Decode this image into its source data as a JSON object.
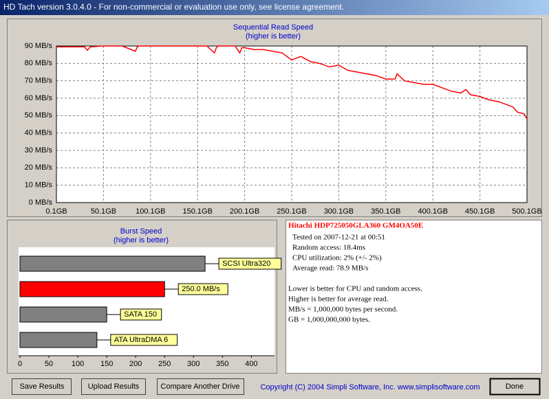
{
  "window": {
    "title": "HD Tach version 3.0.4.0  - For non-commercial or evaluation use only, see license agreement."
  },
  "chart_data": [
    {
      "type": "line",
      "title": "Sequential Read Speed",
      "subtitle": "(higher is better)",
      "color": "#ff0000",
      "grid": true,
      "x": [
        0.1,
        10,
        20,
        30,
        33,
        36,
        50,
        70,
        84,
        86,
        88,
        100,
        120,
        140,
        160,
        168,
        170,
        172,
        180,
        190,
        195,
        197,
        200,
        210,
        220,
        230,
        240,
        250,
        260,
        270,
        280,
        290,
        300,
        310,
        320,
        330,
        340,
        350,
        360,
        362,
        370,
        380,
        390,
        400,
        410,
        420,
        430,
        435,
        440,
        450,
        460,
        470,
        480,
        485,
        490,
        497,
        500.1
      ],
      "values": [
        89.5,
        89.5,
        89.5,
        89.5,
        87.5,
        89.5,
        90,
        90,
        87,
        89.5,
        90,
        90,
        90,
        90,
        90,
        86,
        89,
        90,
        90,
        90,
        86,
        89,
        89,
        88,
        88,
        87,
        86,
        82,
        84,
        81,
        80,
        78,
        79,
        76,
        75,
        74,
        73,
        71,
        71,
        74,
        70,
        69,
        68,
        68,
        66,
        64,
        63,
        65,
        62,
        61,
        59,
        58,
        56,
        55,
        52,
        51,
        48
      ],
      "xlim": [
        0.1,
        500.1
      ],
      "xticks": [
        {
          "value": 0.1,
          "label": "0.1GB"
        },
        {
          "value": 50.1,
          "label": "50.1GB"
        },
        {
          "value": 100.1,
          "label": "100.1GB"
        },
        {
          "value": 150.1,
          "label": "150.1GB"
        },
        {
          "value": 200.1,
          "label": "200.1GB"
        },
        {
          "value": 250.1,
          "label": "250.1GB"
        },
        {
          "value": 300.1,
          "label": "300.1GB"
        },
        {
          "value": 350.1,
          "label": "350.1GB"
        },
        {
          "value": 400.1,
          "label": "400.1GB"
        },
        {
          "value": 450.1,
          "label": "450.1GB"
        },
        {
          "value": 500.1,
          "label": "500.1GB"
        }
      ],
      "ylim": [
        0,
        90
      ],
      "yticks": [
        {
          "value": 0,
          "label": "0 MB/s"
        },
        {
          "value": 10,
          "label": "10 MB/s"
        },
        {
          "value": 20,
          "label": "20 MB/s"
        },
        {
          "value": 30,
          "label": "30 MB/s"
        },
        {
          "value": 40,
          "label": "40 MB/s"
        },
        {
          "value": 50,
          "label": "50 MB/s"
        },
        {
          "value": 60,
          "label": "60 MB/s"
        },
        {
          "value": 70,
          "label": "70 MB/s"
        },
        {
          "value": 80,
          "label": "80 MB/s"
        },
        {
          "value": 90,
          "label": "90 MB/s"
        }
      ]
    },
    {
      "type": "bar",
      "orientation": "horizontal",
      "title": "Burst Speed",
      "subtitle": "(higher is better)",
      "grid": false,
      "categories": [
        "SCSI Ultra320",
        null,
        "SATA 150",
        "ATA UltraDMA 6"
      ],
      "values": [
        320,
        250,
        150,
        133
      ],
      "value_labels": [
        null,
        "250.0 MB/s",
        null,
        null
      ],
      "colors": [
        "#808080",
        "#ff0000",
        "#808080",
        "#808080"
      ],
      "xlim": [
        0,
        440
      ],
      "xticks": [
        0,
        50,
        100,
        150,
        200,
        250,
        300,
        350,
        400
      ]
    }
  ],
  "info": {
    "drive": "Hitachi HDP725050GLA360 GM4OA50E",
    "lines": [
      "Tested on 2007-12-21 at 00:51",
      "Random access: 18.4ms",
      "CPU utilization: 2% (+/- 2%)",
      "Average read: 78.9 MB/s"
    ],
    "notes": [
      "Lower is better for CPU and random access.",
      "Higher is better for average read.",
      "MB/s = 1,000,000 bytes per second.",
      "GB = 1,000,000,000 bytes."
    ]
  },
  "buttons": [
    "Save Results",
    "Upload Results",
    "Compare Another Drive",
    "Done"
  ],
  "copyright": "Copyright (C) 2004 Simpli Software, Inc. www.simplisoftware.com"
}
